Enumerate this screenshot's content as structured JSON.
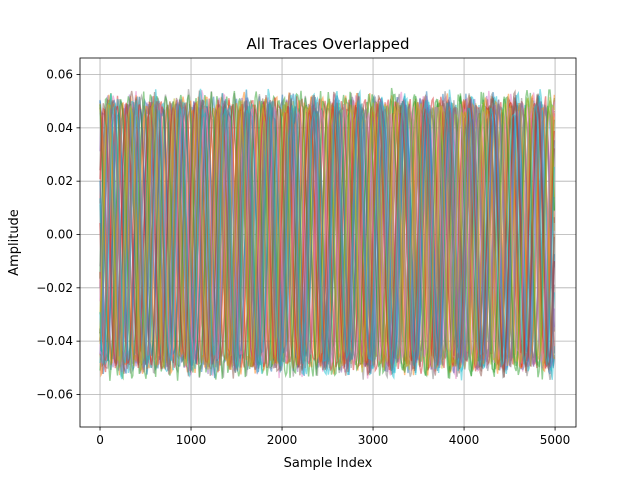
{
  "chart_data": {
    "type": "line",
    "title": "All Traces Overlapped",
    "xlabel": "Sample Index",
    "ylabel": "Amplitude",
    "xlim": [
      -220,
      5230
    ],
    "ylim": [
      -0.0722,
      0.0662
    ],
    "xticks": [
      0,
      1000,
      2000,
      3000,
      4000,
      5000
    ],
    "xtick_labels": [
      "0",
      "1000",
      "2000",
      "3000",
      "4000",
      "5000"
    ],
    "yticks": [
      -0.06,
      -0.04,
      -0.02,
      0.0,
      0.02,
      0.04,
      0.06
    ],
    "ytick_labels": [
      "−0.06",
      "−0.04",
      "−0.02",
      "0.00",
      "0.02",
      "0.04",
      "0.06"
    ],
    "grid": true,
    "legend": "none",
    "n_samples": 5001,
    "sample_range": [
      0,
      5000
    ],
    "amplitude_range_approx": [
      -0.065,
      0.061
    ],
    "approx_period_samples": 250,
    "line_alpha": 0.5,
    "series_colors": [
      "#1f77b4",
      "#ff7f0e",
      "#2ca02c",
      "#d62728",
      "#9467bd",
      "#8c564b",
      "#e377c2",
      "#7f7f7f",
      "#bcbd22",
      "#17becf"
    ]
  }
}
